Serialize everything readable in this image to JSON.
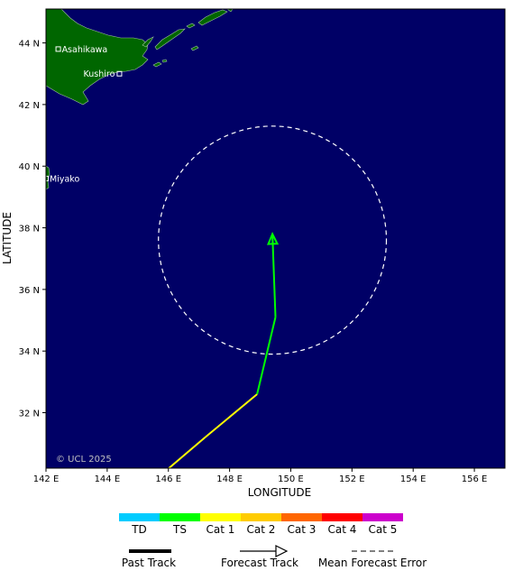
{
  "map": {
    "ocean_color": "#000066",
    "land_color": "#006600",
    "copyright": "© UCL 2025",
    "xlabel": "LONGITUDE",
    "ylabel": "LATITUDE",
    "lon_range": [
      142,
      157
    ],
    "lat_range": [
      30.2,
      45.1
    ],
    "lon_ticks": [
      {
        "value": 142,
        "label": "142 E"
      },
      {
        "value": 144,
        "label": "144 E"
      },
      {
        "value": 146,
        "label": "146 E"
      },
      {
        "value": 148,
        "label": "148 E"
      },
      {
        "value": 150,
        "label": "150 E"
      },
      {
        "value": 152,
        "label": "152 E"
      },
      {
        "value": 154,
        "label": "154 E"
      },
      {
        "value": 156,
        "label": "156 E"
      }
    ],
    "lat_ticks": [
      {
        "value": 44,
        "label": "44 N"
      },
      {
        "value": 42,
        "label": "42 N"
      },
      {
        "value": 40,
        "label": "40 N"
      },
      {
        "value": 38,
        "label": "38 N"
      },
      {
        "value": 36,
        "label": "36 N"
      },
      {
        "value": 34,
        "label": "34 N"
      },
      {
        "value": 32,
        "label": "32 N"
      }
    ],
    "cities": [
      {
        "name": "Asahikawa",
        "lon": 142.4,
        "lat": 43.8
      },
      {
        "name": "Kushiro",
        "lon": 144.4,
        "lat": 43.0
      },
      {
        "name": "Miyako",
        "lon": 142.0,
        "lat": 39.6
      }
    ]
  },
  "chart_data": {
    "type": "map-track",
    "past_track": [],
    "forecast_track": [
      {
        "lon": 145.9,
        "lat": 30.1,
        "category": "TS"
      },
      {
        "lon": 147.2,
        "lat": 31.2,
        "category": "Cat 1"
      },
      {
        "lon": 148.9,
        "lat": 32.6,
        "category": "Cat 1"
      },
      {
        "lon": 149.5,
        "lat": 35.1,
        "category": "TS"
      },
      {
        "lon": 149.4,
        "lat": 37.8,
        "category": "TS"
      }
    ],
    "mean_forecast_error": {
      "center_lon": 149.4,
      "center_lat": 37.6,
      "radius_deg_lat": 3.7
    }
  },
  "legend": {
    "categories": [
      {
        "label": "TD",
        "color": "#00ccff"
      },
      {
        "label": "TS",
        "color": "#00ff00"
      },
      {
        "label": "Cat 1",
        "color": "#ffff00"
      },
      {
        "label": "Cat 2",
        "color": "#ffcc00"
      },
      {
        "label": "Cat 3",
        "color": "#ff6600"
      },
      {
        "label": "Cat 4",
        "color": "#ff0000"
      },
      {
        "label": "Cat 5",
        "color": "#cc00cc"
      }
    ],
    "past_track_label": "Past Track",
    "forecast_track_label": "Forecast Track",
    "error_label": "Mean Forecast Error"
  }
}
